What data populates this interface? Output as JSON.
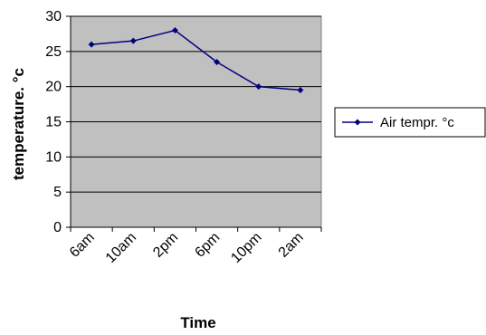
{
  "chart_data": {
    "type": "line",
    "title": "",
    "xlabel": "Time",
    "ylabel": "temperature. °c",
    "categories": [
      "6am",
      "10am",
      "2pm",
      "6pm",
      "10pm",
      "2am"
    ],
    "series": [
      {
        "name": "Air tempr. °c",
        "values": [
          26,
          26.5,
          28,
          23.5,
          20,
          19.5
        ],
        "color": "#00007f"
      }
    ],
    "ylim": [
      0,
      30
    ],
    "yticks": [
      0,
      5,
      10,
      15,
      20,
      25,
      30
    ],
    "grid": true,
    "plot_background": "#c0c0c0",
    "legend_position": "right"
  }
}
